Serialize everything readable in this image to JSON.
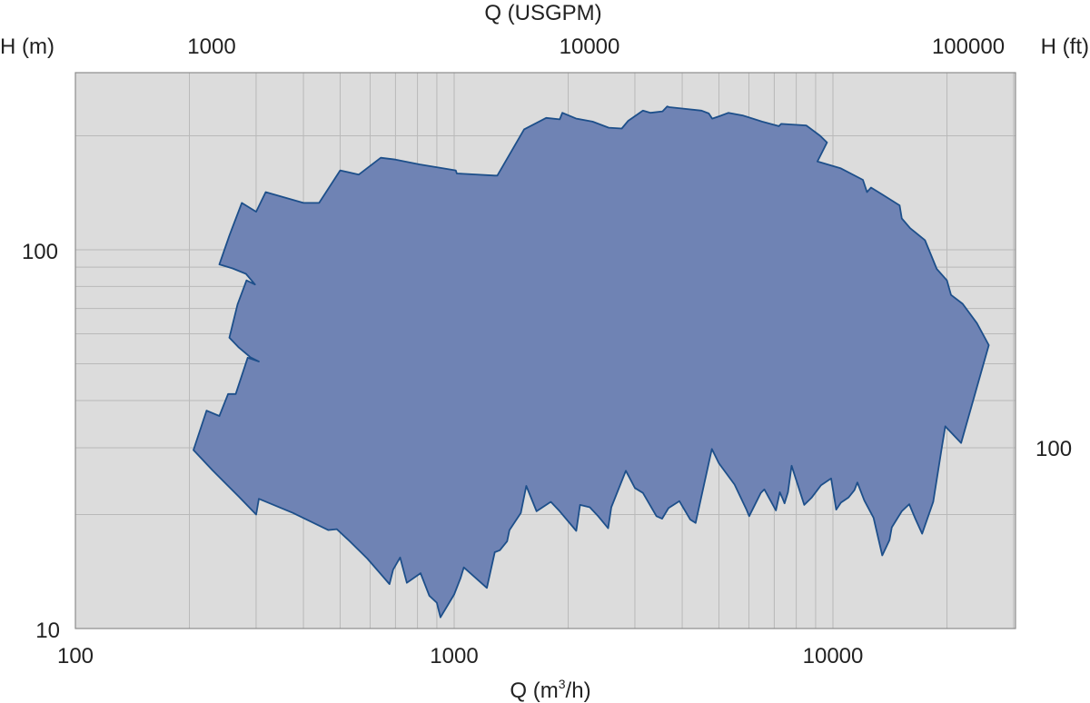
{
  "chart_data": {
    "type": "area",
    "x_bottom": {
      "label_prefix": "Q (m",
      "label_sup": "3",
      "label_suffix": "/h)",
      "scale": "log",
      "range": [
        100,
        25000
      ],
      "ticks": [
        "100",
        "1000",
        "10000"
      ]
    },
    "x_top": {
      "label": "Q (USGPM)",
      "scale": "log",
      "ticks": [
        "1000",
        "10000",
        "100000"
      ]
    },
    "y_left": {
      "label": "H (m)",
      "scale": "log",
      "range": [
        10,
        250
      ],
      "ticks": [
        "10",
        "100"
      ]
    },
    "y_right": {
      "label": "H (ft)",
      "scale": "log",
      "ticks": [
        "100"
      ]
    },
    "grid": true,
    "fill_color": "#6f83b4",
    "edge_color": "#1d4f8a",
    "plot_bg": "#dcdcdc",
    "region_boundary": [
      [
        205,
        29.6
      ],
      [
        222,
        37.6
      ],
      [
        240,
        36.4
      ],
      [
        253,
        41.6
      ],
      [
        265,
        41.6
      ],
      [
        285,
        51.9
      ],
      [
        305,
        50.7
      ],
      [
        290,
        52.0
      ],
      [
        270,
        55.2
      ],
      [
        255,
        58.6
      ],
      [
        268,
        71.7
      ],
      [
        283,
        83.0
      ],
      [
        298,
        81.0
      ],
      [
        282,
        86.4
      ],
      [
        260,
        89.3
      ],
      [
        240,
        91.5
      ],
      [
        255,
        109
      ],
      [
        275,
        133
      ],
      [
        300,
        126
      ],
      [
        318,
        142
      ],
      [
        400,
        133
      ],
      [
        440,
        133
      ],
      [
        500,
        162
      ],
      [
        560,
        158
      ],
      [
        640,
        175
      ],
      [
        700,
        173
      ],
      [
        810,
        168
      ],
      [
        1010,
        162
      ],
      [
        1016,
        159
      ],
      [
        1280,
        157
      ],
      [
        1300,
        157
      ],
      [
        1530,
        208
      ],
      [
        1750,
        223
      ],
      [
        1900,
        221
      ],
      [
        1930,
        230
      ],
      [
        2100,
        222
      ],
      [
        2320,
        218
      ],
      [
        2560,
        210
      ],
      [
        2770,
        209
      ],
      [
        2880,
        219
      ],
      [
        3150,
        233
      ],
      [
        3300,
        230
      ],
      [
        3550,
        232
      ],
      [
        3650,
        239
      ],
      [
        3700,
        238
      ],
      [
        4000,
        236
      ],
      [
        4500,
        233
      ],
      [
        4700,
        229
      ],
      [
        4800,
        222
      ],
      [
        5000,
        225
      ],
      [
        5300,
        230
      ],
      [
        5800,
        226
      ],
      [
        6500,
        218
      ],
      [
        7200,
        212
      ],
      [
        7300,
        215
      ],
      [
        8500,
        213
      ],
      [
        9250,
        200
      ],
      [
        9650,
        192
      ],
      [
        9100,
        171
      ],
      [
        10500,
        164
      ],
      [
        12000,
        153
      ],
      [
        12300,
        142
      ],
      [
        12600,
        146
      ],
      [
        13500,
        140
      ],
      [
        15000,
        131
      ],
      [
        15200,
        121
      ],
      [
        16000,
        114
      ],
      [
        17500,
        106
      ],
      [
        18800,
        89
      ],
      [
        20000,
        83
      ],
      [
        20500,
        76
      ],
      [
        22000,
        72
      ],
      [
        24000,
        64
      ],
      [
        25800,
        56
      ],
      [
        21800,
        30.9
      ],
      [
        20000,
        33.8
      ],
      [
        19800,
        34.2
      ],
      [
        19400,
        30.2
      ],
      [
        18400,
        21.6
      ],
      [
        17200,
        17.8
      ],
      [
        16500,
        19.5
      ],
      [
        15900,
        21.3
      ],
      [
        15200,
        20.4
      ],
      [
        14300,
        18.5
      ],
      [
        14100,
        17.1
      ],
      [
        13500,
        15.6
      ],
      [
        12800,
        19.6
      ],
      [
        12100,
        21.8
      ],
      [
        11600,
        24.3
      ],
      [
        11400,
        23.2
      ],
      [
        11000,
        22.2
      ],
      [
        10500,
        21.5
      ],
      [
        10200,
        20.6
      ],
      [
        9890,
        24.9
      ],
      [
        9300,
        23.9
      ],
      [
        8800,
        22.2
      ],
      [
        8400,
        21.2
      ],
      [
        7780,
        26.9
      ],
      [
        7610,
        22.9
      ],
      [
        7450,
        21.4
      ],
      [
        7370,
        22.0
      ],
      [
        7240,
        22.9
      ],
      [
        7070,
        20.5
      ],
      [
        6590,
        23.3
      ],
      [
        6450,
        22.8
      ],
      [
        6010,
        19.8
      ],
      [
        5900,
        20.7
      ],
      [
        5500,
        24.0
      ],
      [
        5000,
        27.3
      ],
      [
        4790,
        29.8
      ],
      [
        4340,
        19.0
      ],
      [
        4200,
        19.4
      ],
      [
        3930,
        21.7
      ],
      [
        3680,
        20.8
      ],
      [
        3540,
        19.5
      ],
      [
        3420,
        19.8
      ],
      [
        3150,
        22.8
      ],
      [
        3000,
        23.5
      ],
      [
        2840,
        26.1
      ],
      [
        2600,
        20.9
      ],
      [
        2550,
        18.4
      ],
      [
        2400,
        19.8
      ],
      [
        2280,
        20.9
      ],
      [
        2150,
        21.2
      ],
      [
        2100,
        18.1
      ],
      [
        1900,
        20.4
      ],
      [
        1800,
        21.6
      ],
      [
        1650,
        20.4
      ],
      [
        1550,
        23.8
      ],
      [
        1500,
        20.2
      ],
      [
        1400,
        18.2
      ],
      [
        1380,
        17.0
      ],
      [
        1320,
        16.1
      ],
      [
        1280,
        15.9
      ],
      [
        1220,
        12.8
      ],
      [
        1060,
        14.5
      ],
      [
        1040,
        13.6
      ],
      [
        1000,
        12.3
      ],
      [
        920,
        10.7
      ],
      [
        900,
        11.7
      ],
      [
        860,
        12.2
      ],
      [
        815,
        14.0
      ],
      [
        750,
        13.2
      ],
      [
        720,
        15.4
      ],
      [
        690,
        14.3
      ],
      [
        675,
        13.1
      ],
      [
        590,
        15.3
      ],
      [
        530,
        17.0
      ],
      [
        490,
        18.3
      ],
      [
        465,
        18.2
      ],
      [
        375,
        20.2
      ],
      [
        305,
        22.0
      ],
      [
        300,
        20.0
      ],
      [
        270,
        22.3
      ],
      [
        230,
        26.2
      ],
      [
        205,
        29.6
      ]
    ]
  }
}
